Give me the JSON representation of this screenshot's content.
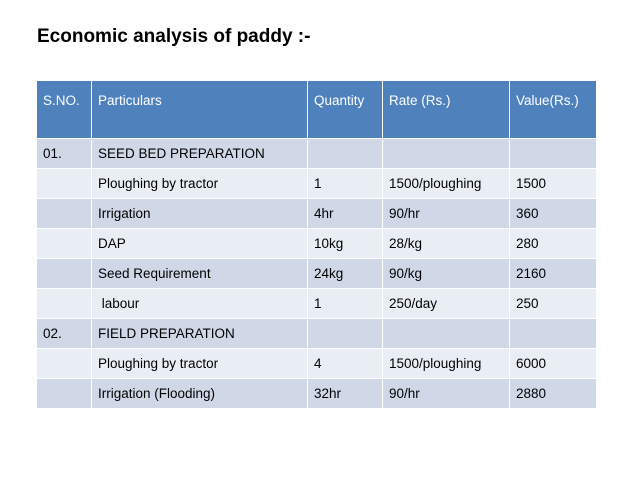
{
  "title": "Economic analysis of paddy :-",
  "table": {
    "headers": [
      "S.NO.",
      "Particulars",
      "Quantity",
      "Rate (Rs.)",
      "Value(Rs.)"
    ],
    "rows": [
      [
        "01.",
        "SEED BED PREPARATION",
        "",
        "",
        ""
      ],
      [
        "",
        "Ploughing by tractor",
        "1",
        "1500/ploughing",
        "1500"
      ],
      [
        "",
        "Irrigation",
        "4hr",
        "90/hr",
        "360"
      ],
      [
        "",
        "DAP",
        "10kg",
        "28/kg",
        "280"
      ],
      [
        "",
        "Seed Requirement",
        "24kg",
        "90/kg",
        "2160"
      ],
      [
        "",
        " labour",
        "1",
        "250/day",
        "250"
      ],
      [
        "02.",
        "FIELD PREPARATION",
        "",
        "",
        ""
      ],
      [
        "",
        "Ploughing by tractor",
        "4",
        "1500/ploughing",
        "6000"
      ],
      [
        "",
        "Irrigation (Flooding)",
        "32hr",
        "90/hr",
        "2880"
      ]
    ]
  },
  "colors": {
    "header_bg": "#4f81bd",
    "row_odd_bg": "#d0d8e8",
    "row_even_bg": "#e9edf4"
  }
}
